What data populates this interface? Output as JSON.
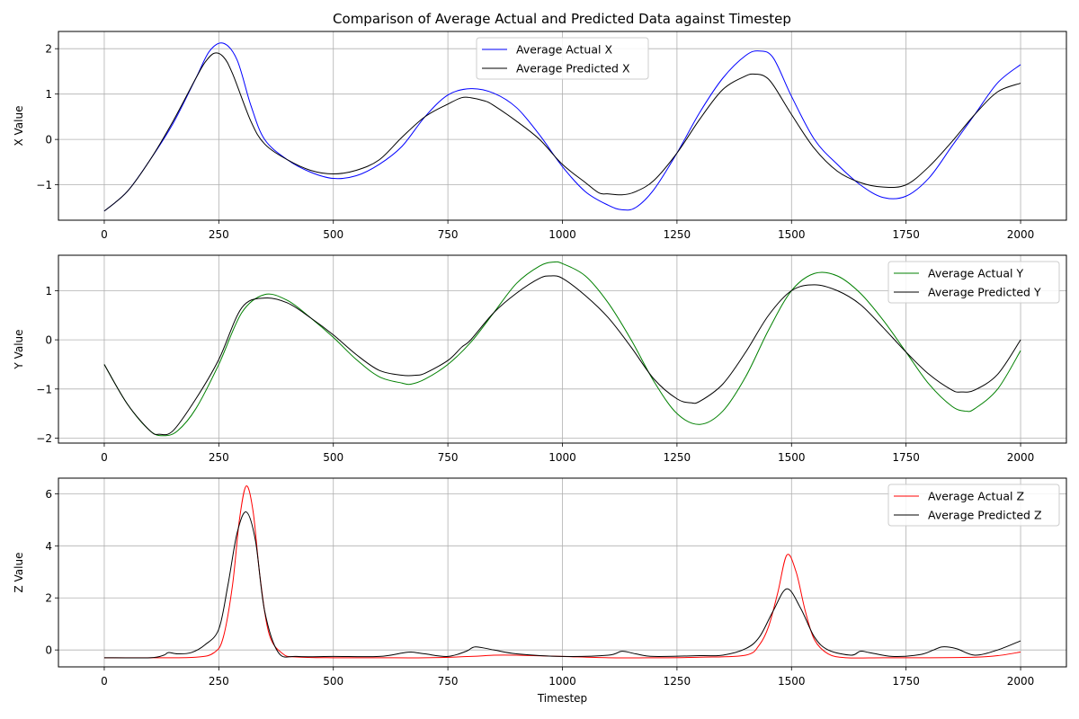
{
  "chart_data": [
    {
      "type": "line",
      "title": "Comparison of Average Actual and Predicted Data against Timestep",
      "xlabel": "",
      "ylabel": "X Value",
      "xlim": [
        -100,
        2100
      ],
      "ylim": [
        -1.78,
        2.38
      ],
      "xticks": [
        0,
        250,
        500,
        750,
        1000,
        1250,
        1500,
        1750,
        2000
      ],
      "yticks": [
        -1,
        0,
        1,
        2
      ],
      "ytick_labels": [
        "−1",
        "0",
        "1",
        "2"
      ],
      "grid": true,
      "legend_position": "upper-center",
      "series": [
        {
          "name": "Average Actual X",
          "color": "#0000ff",
          "x": [
            0,
            50,
            100,
            150,
            200,
            230,
            260,
            290,
            320,
            350,
            400,
            450,
            500,
            550,
            600,
            650,
            700,
            750,
            800,
            850,
            900,
            950,
            1000,
            1050,
            1100,
            1130,
            1160,
            1200,
            1250,
            1300,
            1350,
            1400,
            1430,
            1460,
            1500,
            1550,
            1600,
            1650,
            1700,
            1750,
            1800,
            1850,
            1900,
            1950,
            2000
          ],
          "values": [
            -1.58,
            -1.15,
            -0.45,
            0.35,
            1.35,
            1.95,
            2.12,
            1.75,
            0.75,
            0.0,
            -0.45,
            -0.72,
            -0.86,
            -0.8,
            -0.55,
            -0.15,
            0.5,
            0.98,
            1.12,
            1.02,
            0.7,
            0.1,
            -0.6,
            -1.15,
            -1.45,
            -1.55,
            -1.5,
            -1.1,
            -0.3,
            0.6,
            1.35,
            1.85,
            1.95,
            1.8,
            0.95,
            0.0,
            -0.55,
            -1.0,
            -1.28,
            -1.25,
            -0.85,
            -0.15,
            0.55,
            1.25,
            1.65
          ]
        },
        {
          "name": "Average Predicted X",
          "color": "#000000",
          "x": [
            0,
            50,
            100,
            150,
            200,
            220,
            240,
            260,
            280,
            320,
            350,
            400,
            450,
            500,
            550,
            600,
            650,
            700,
            750,
            780,
            800,
            830,
            850,
            900,
            950,
            1000,
            1050,
            1080,
            1100,
            1130,
            1160,
            1200,
            1250,
            1300,
            1350,
            1400,
            1420,
            1440,
            1460,
            1500,
            1550,
            1600,
            1650,
            1700,
            1750,
            1800,
            1850,
            1900,
            1950,
            2000
          ],
          "values": [
            -1.58,
            -1.15,
            -0.45,
            0.4,
            1.35,
            1.7,
            1.9,
            1.82,
            1.45,
            0.4,
            -0.1,
            -0.45,
            -0.68,
            -0.76,
            -0.68,
            -0.45,
            0.05,
            0.5,
            0.78,
            0.92,
            0.92,
            0.85,
            0.75,
            0.4,
            0.0,
            -0.55,
            -0.95,
            -1.18,
            -1.2,
            -1.22,
            -1.15,
            -0.9,
            -0.3,
            0.45,
            1.1,
            1.4,
            1.44,
            1.4,
            1.2,
            0.55,
            -0.2,
            -0.7,
            -0.95,
            -1.05,
            -1.0,
            -0.6,
            -0.05,
            0.55,
            1.05,
            1.24
          ]
        }
      ]
    },
    {
      "type": "line",
      "title": "",
      "xlabel": "",
      "ylabel": "Y Value",
      "xlim": [
        -100,
        2100
      ],
      "ylim": [
        -2.1,
        1.72
      ],
      "xticks": [
        0,
        250,
        500,
        750,
        1000,
        1250,
        1500,
        1750,
        2000
      ],
      "yticks": [
        -2,
        -1,
        0,
        1
      ],
      "ytick_labels": [
        "−2",
        "−1",
        "0",
        "1"
      ],
      "grid": true,
      "legend_position": "upper-right",
      "series": [
        {
          "name": "Average Actual Y",
          "color": "#008000",
          "x": [
            0,
            50,
            100,
            130,
            160,
            200,
            250,
            300,
            350,
            400,
            450,
            500,
            550,
            600,
            650,
            670,
            700,
            750,
            800,
            850,
            900,
            950,
            980,
            1000,
            1050,
            1100,
            1150,
            1200,
            1250,
            1300,
            1350,
            1400,
            1450,
            1500,
            1550,
            1600,
            1650,
            1700,
            1750,
            1800,
            1850,
            1880,
            1900,
            1950,
            2000
          ],
          "values": [
            -0.5,
            -1.3,
            -1.85,
            -1.95,
            -1.85,
            -1.4,
            -0.5,
            0.55,
            0.92,
            0.8,
            0.45,
            0.05,
            -0.4,
            -0.75,
            -0.88,
            -0.9,
            -0.8,
            -0.5,
            -0.05,
            0.55,
            1.15,
            1.5,
            1.58,
            1.55,
            1.3,
            0.75,
            0.0,
            -0.85,
            -1.5,
            -1.72,
            -1.45,
            -0.75,
            0.2,
            1.0,
            1.35,
            1.3,
            0.95,
            0.4,
            -0.25,
            -0.9,
            -1.35,
            -1.45,
            -1.4,
            -1.0,
            -0.22
          ]
        },
        {
          "name": "Average Predicted Y",
          "color": "#000000",
          "x": [
            0,
            50,
            100,
            120,
            150,
            200,
            250,
            300,
            350,
            400,
            450,
            500,
            550,
            600,
            650,
            680,
            700,
            750,
            780,
            800,
            850,
            900,
            950,
            975,
            1000,
            1050,
            1100,
            1150,
            1200,
            1250,
            1280,
            1300,
            1350,
            1400,
            1450,
            1500,
            1550,
            1600,
            1650,
            1700,
            1750,
            1800,
            1850,
            1870,
            1900,
            1950,
            2000
          ],
          "values": [
            -0.5,
            -1.3,
            -1.85,
            -1.92,
            -1.85,
            -1.2,
            -0.4,
            0.65,
            0.85,
            0.75,
            0.45,
            0.1,
            -0.3,
            -0.62,
            -0.72,
            -0.72,
            -0.68,
            -0.42,
            -0.15,
            0.0,
            0.55,
            0.95,
            1.25,
            1.3,
            1.25,
            0.9,
            0.45,
            -0.15,
            -0.8,
            -1.2,
            -1.28,
            -1.25,
            -0.9,
            -0.25,
            0.5,
            1.0,
            1.12,
            1.0,
            0.72,
            0.25,
            -0.25,
            -0.7,
            -1.02,
            -1.06,
            -1.02,
            -0.7,
            0.0
          ]
        }
      ]
    },
    {
      "type": "line",
      "title": "",
      "xlabel": "Timestep",
      "ylabel": "Z Value",
      "xlim": [
        -100,
        2100
      ],
      "ylim": [
        -0.65,
        6.6
      ],
      "xticks": [
        0,
        250,
        500,
        750,
        1000,
        1250,
        1500,
        1750,
        2000
      ],
      "yticks": [
        0,
        2,
        4,
        6
      ],
      "ytick_labels": [
        "0",
        "2",
        "4",
        "6"
      ],
      "grid": true,
      "legend_position": "upper-right",
      "series": [
        {
          "name": "Average Actual Z",
          "color": "#ff0000",
          "x": [
            0,
            100,
            200,
            240,
            260,
            280,
            295,
            310,
            325,
            340,
            360,
            390,
            420,
            500,
            600,
            700,
            800,
            850,
            900,
            1000,
            1100,
            1200,
            1300,
            1400,
            1430,
            1450,
            1470,
            1490,
            1510,
            1530,
            1550,
            1580,
            1620,
            1700,
            1800,
            1900,
            1950,
            2000
          ],
          "values": [
            -0.3,
            -0.3,
            -0.28,
            -0.1,
            0.5,
            2.5,
            5.0,
            6.3,
            5.3,
            2.8,
            0.6,
            -0.15,
            -0.27,
            -0.3,
            -0.3,
            -0.3,
            -0.25,
            -0.2,
            -0.2,
            -0.25,
            -0.3,
            -0.3,
            -0.28,
            -0.2,
            0.2,
            0.9,
            2.2,
            3.65,
            3.0,
            1.5,
            0.4,
            -0.15,
            -0.3,
            -0.3,
            -0.3,
            -0.28,
            -0.22,
            -0.08
          ]
        },
        {
          "name": "Average Predicted Z",
          "color": "#000000",
          "x": [
            0,
            100,
            130,
            140,
            160,
            190,
            220,
            250,
            270,
            290,
            310,
            330,
            350,
            380,
            420,
            500,
            600,
            650,
            670,
            700,
            750,
            790,
            810,
            850,
            900,
            1000,
            1100,
            1130,
            1160,
            1200,
            1300,
            1350,
            1400,
            1430,
            1460,
            1490,
            1520,
            1550,
            1580,
            1630,
            1650,
            1670,
            1720,
            1780,
            1810,
            1830,
            1860,
            1900,
            1950,
            2000
          ],
          "values": [
            -0.3,
            -0.3,
            -0.2,
            -0.1,
            -0.15,
            -0.1,
            0.2,
            0.8,
            2.5,
            4.5,
            5.3,
            4.2,
            1.5,
            -0.1,
            -0.25,
            -0.25,
            -0.25,
            -0.12,
            -0.08,
            -0.15,
            -0.25,
            -0.05,
            0.12,
            0.0,
            -0.15,
            -0.25,
            -0.2,
            -0.05,
            -0.15,
            -0.25,
            -0.22,
            -0.2,
            0.05,
            0.5,
            1.5,
            2.35,
            1.6,
            0.5,
            0.0,
            -0.2,
            -0.05,
            -0.1,
            -0.25,
            -0.18,
            0.0,
            0.12,
            0.05,
            -0.2,
            0.0,
            0.35
          ]
        }
      ]
    }
  ]
}
